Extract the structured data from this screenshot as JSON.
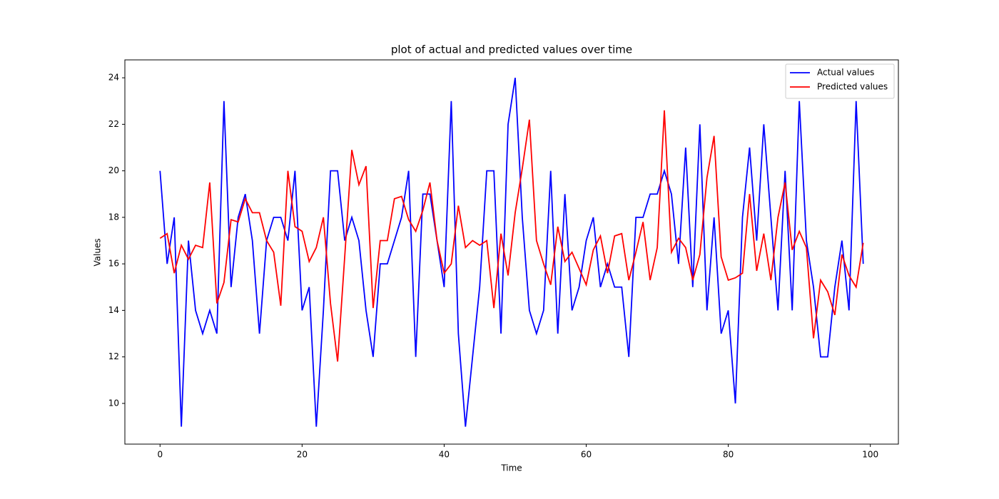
{
  "chart_data": {
    "type": "line",
    "title": "plot of actual and predicted values over time",
    "x_label": "Time",
    "y_label": "Values",
    "x": [
      0,
      1,
      2,
      3,
      4,
      5,
      6,
      7,
      8,
      9,
      10,
      11,
      12,
      13,
      14,
      15,
      16,
      17,
      18,
      19,
      20,
      21,
      22,
      23,
      24,
      25,
      26,
      27,
      28,
      29,
      30,
      31,
      32,
      33,
      34,
      35,
      36,
      37,
      38,
      39,
      40,
      41,
      42,
      43,
      44,
      45,
      46,
      47,
      48,
      49,
      50,
      51,
      52,
      53,
      54,
      55,
      56,
      57,
      58,
      59,
      60,
      61,
      62,
      63,
      64,
      65,
      66,
      67,
      68,
      69,
      70,
      71,
      72,
      73,
      74,
      75,
      76,
      77,
      78,
      79,
      80,
      81,
      82,
      83,
      84,
      85,
      86,
      87,
      88,
      89,
      90,
      91,
      92,
      93,
      94,
      95,
      96,
      97,
      98,
      99
    ],
    "series": [
      {
        "name": "Actual values",
        "color": "#0000ff",
        "values": [
          20,
          16,
          18,
          9,
          17,
          14,
          13,
          14,
          13,
          23,
          15,
          18,
          19,
          17,
          13,
          17,
          18,
          18,
          17,
          20,
          14,
          15,
          9,
          14,
          20,
          20,
          17,
          18,
          17,
          14,
          12,
          16,
          16,
          17,
          18,
          20,
          12,
          19,
          19,
          17,
          15,
          23,
          13,
          9,
          12,
          15,
          20,
          20,
          13,
          22,
          24,
          18,
          14,
          13,
          14,
          20,
          13,
          19,
          14,
          15,
          17,
          18,
          15,
          16,
          15,
          15,
          12,
          18,
          18,
          19,
          19,
          20,
          19,
          16,
          21,
          15,
          22,
          14,
          18,
          13,
          14,
          10,
          18,
          21,
          17,
          22,
          18,
          14,
          20,
          14,
          23,
          17,
          15,
          12,
          12,
          15,
          17,
          14,
          23,
          16
        ]
      },
      {
        "name": "Predicted values",
        "color": "#ff0000",
        "values": [
          17.1,
          17.3,
          15.6,
          16.8,
          16.2,
          16.8,
          16.7,
          19.5,
          14.3,
          15.2,
          17.9,
          17.8,
          18.8,
          18.2,
          18.2,
          17.0,
          16.5,
          14.2,
          20.0,
          17.6,
          17.4,
          16.1,
          16.7,
          18.0,
          14.3,
          11.8,
          16.3,
          20.9,
          19.4,
          20.2,
          14.1,
          17.0,
          17.0,
          18.8,
          18.9,
          17.9,
          17.4,
          18.3,
          19.5,
          17.0,
          15.6,
          16.0,
          18.5,
          16.7,
          17.0,
          16.8,
          17.0,
          14.1,
          17.3,
          15.5,
          18.2,
          20.1,
          22.2,
          17.0,
          16.0,
          15.1,
          17.6,
          16.1,
          16.5,
          15.8,
          15.1,
          16.6,
          17.2,
          15.6,
          17.2,
          17.3,
          15.3,
          16.5,
          17.8,
          15.3,
          16.7,
          22.6,
          16.5,
          17.1,
          16.7,
          15.3,
          16.4,
          19.7,
          21.5,
          16.3,
          15.3,
          15.4,
          15.6,
          19.0,
          15.7,
          17.3,
          15.3,
          18.0,
          19.5,
          16.6,
          17.4,
          16.7,
          12.8,
          15.3,
          14.8,
          13.8,
          16.4,
          15.5,
          15.0,
          16.9
        ]
      }
    ],
    "xlim": [
      -4.95,
      103.95
    ],
    "ylim": [
      8.25,
      24.77
    ],
    "xticks": [
      0,
      20,
      40,
      60,
      80,
      100
    ],
    "yticks": [
      10,
      12,
      14,
      16,
      18,
      20,
      22,
      24
    ],
    "grid": false,
    "legend": "upper right"
  }
}
